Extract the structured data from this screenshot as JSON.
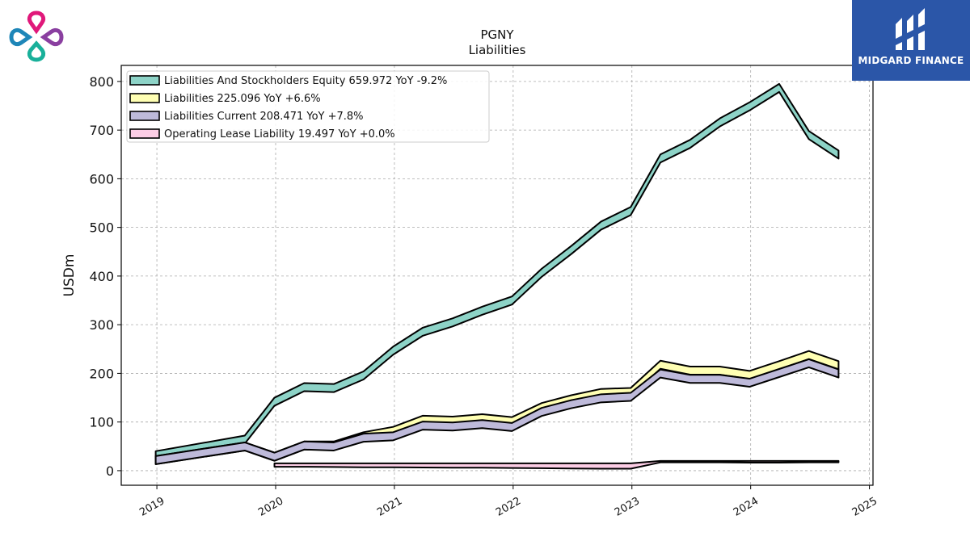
{
  "brand": {
    "name": "MIDGARD FINANCE"
  },
  "chart_data": {
    "type": "area",
    "title": "PGNY",
    "subtitle": "Liabilities",
    "ylabel": "USDm",
    "xlabel": "",
    "xlim": [
      2018.7,
      2025.03
    ],
    "ylim": [
      -30,
      833
    ],
    "yticks": [
      0,
      100,
      200,
      300,
      400,
      500,
      600,
      700,
      800
    ],
    "xticks": [
      "2019",
      "2020",
      "2021",
      "2022",
      "2023",
      "2024",
      "2025"
    ],
    "grid": true,
    "legend_position": "top-left",
    "series": [
      {
        "name": "Liabilities And Stockholders Equity",
        "legend_label": "Liabilities And Stockholders Equity  659.972 YoY -9.2%",
        "color": "#8dd3c7",
        "x": [
          2018.99,
          2019.74,
          2019.99,
          2020.24,
          2020.49,
          2020.74,
          2020.99,
          2021.24,
          2021.49,
          2021.74,
          2021.99,
          2022.24,
          2022.49,
          2022.74,
          2022.99,
          2023.24,
          2023.49,
          2023.74,
          2023.99,
          2024.24,
          2024.49,
          2024.74
        ],
        "values": [
          40,
          72,
          150,
          180,
          178,
          204,
          255,
          294,
          313,
          337,
          358,
          415,
          462,
          512,
          542,
          650,
          680,
          724,
          757,
          795,
          698,
          658
        ]
      },
      {
        "name": "Liabilities",
        "legend_label": "Liabilities  225.096 YoY +6.6%",
        "color": "#ffffb3",
        "x": [
          2018.99,
          2019.74,
          2019.99,
          2020.24,
          2020.49,
          2020.74,
          2020.99,
          2021.24,
          2021.49,
          2021.74,
          2021.99,
          2022.24,
          2022.49,
          2022.74,
          2022.99,
          2023.24,
          2023.49,
          2023.74,
          2023.99,
          2024.24,
          2024.49,
          2024.74
        ],
        "values": [
          30,
          58,
          37,
          60,
          60,
          79,
          90,
          113,
          111,
          116,
          110,
          139,
          155,
          168,
          170,
          226,
          214,
          214,
          205,
          225,
          246,
          225
        ]
      },
      {
        "name": "Liabilities Current",
        "legend_label": "Liabilities Current  208.471 YoY +7.8%",
        "color": "#bebada",
        "x": [
          2018.99,
          2019.74,
          2019.99,
          2020.24,
          2020.49,
          2020.74,
          2020.99,
          2021.24,
          2021.49,
          2021.74,
          2021.99,
          2022.24,
          2022.49,
          2022.74,
          2022.99,
          2023.24,
          2023.49,
          2023.74,
          2023.99,
          2024.24,
          2024.49,
          2024.74
        ],
        "values": [
          30,
          58,
          37,
          60,
          58,
          76,
          79,
          101,
          99,
          104,
          98,
          129,
          145,
          157,
          160,
          208,
          197,
          197,
          189,
          209,
          229,
          208
        ]
      },
      {
        "name": "Operating Lease Liability",
        "legend_label": "Operating Lease Liability  19.497 YoY +0.0%",
        "color": "#fccde5",
        "x": [
          2019.99,
          2020.24,
          2020.49,
          2020.74,
          2020.99,
          2021.24,
          2021.49,
          2021.74,
          2021.99,
          2022.24,
          2022.49,
          2022.74,
          2022.99,
          2023.24,
          2023.49,
          2023.74,
          2023.99,
          2024.24,
          2024.49,
          2024.74
        ],
        "values": [
          15,
          15,
          15,
          15,
          15,
          15,
          15,
          15,
          15,
          15,
          15,
          15,
          15,
          20,
          20,
          20,
          20,
          20,
          20,
          20
        ],
        "base": [
          8,
          8,
          7.5,
          7,
          7,
          6.5,
          6,
          6,
          5.5,
          5,
          4.5,
          4,
          4,
          17,
          17,
          17,
          16.5,
          16.5,
          17,
          17
        ]
      }
    ]
  }
}
